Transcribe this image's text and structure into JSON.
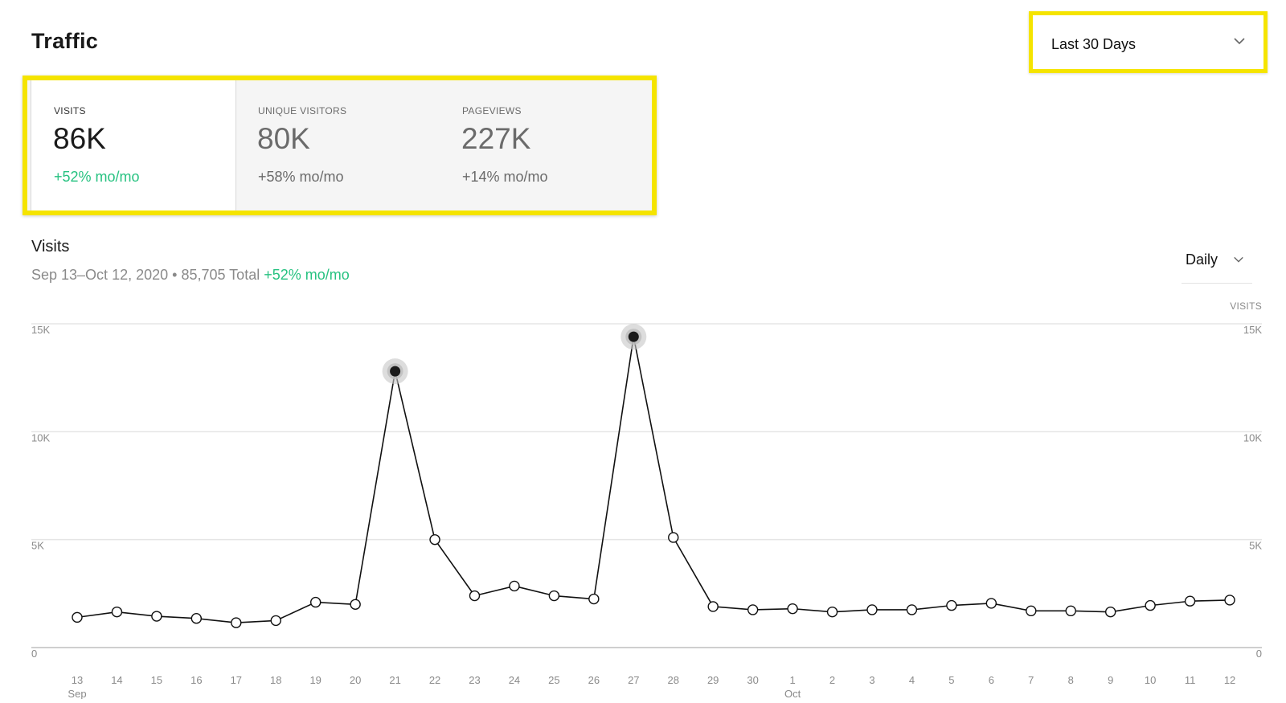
{
  "page": {
    "title": "Traffic"
  },
  "date_range": {
    "selected": "Last 30 Days",
    "icon": "chevron-down-icon"
  },
  "stats": [
    {
      "label": "VISITS",
      "value": "86K",
      "change": "+52% mo/mo",
      "active": true
    },
    {
      "label": "UNIQUE VISITORS",
      "value": "80K",
      "change": "+58% mo/mo",
      "active": false
    },
    {
      "label": "PAGEVIEWS",
      "value": "227K",
      "change": "+14% mo/mo",
      "active": false
    }
  ],
  "section": {
    "title": "Visits",
    "period": "Sep 13–Oct 12, 2020",
    "separator": " • ",
    "total": "85,705 Total",
    "change": "+52% mo/mo",
    "interval": "Daily"
  },
  "colors": {
    "highlight": "#f5e400",
    "positive": "#27c281",
    "line": "#111111",
    "grid": "#e5e5e5"
  },
  "chart_data": {
    "type": "line",
    "ylabel": "VISITS",
    "ylim": [
      0,
      15000
    ],
    "yticks": [
      0,
      5000,
      10000,
      15000
    ],
    "ytick_labels": [
      "0",
      "5K",
      "10K",
      "15K"
    ],
    "x": [
      "13",
      "14",
      "15",
      "16",
      "17",
      "18",
      "19",
      "20",
      "21",
      "22",
      "23",
      "24",
      "25",
      "26",
      "27",
      "28",
      "29",
      "30",
      "1",
      "2",
      "3",
      "4",
      "5",
      "6",
      "7",
      "8",
      "9",
      "10",
      "11",
      "12"
    ],
    "month_labels": [
      {
        "index": 0,
        "label": "Sep"
      },
      {
        "index": 18,
        "label": "Oct"
      }
    ],
    "series": [
      {
        "values": [
          1400,
          1650,
          1450,
          1350,
          1150,
          1250,
          2100,
          2000,
          12800,
          5000,
          2400,
          2850,
          2400,
          2250,
          14400,
          5100,
          1900,
          1750,
          1800,
          1650,
          1750,
          1750,
          1950,
          2050,
          1700,
          1700,
          1650,
          1950,
          2150,
          2200
        ],
        "highlighted_indices": [
          8,
          14
        ]
      }
    ]
  }
}
